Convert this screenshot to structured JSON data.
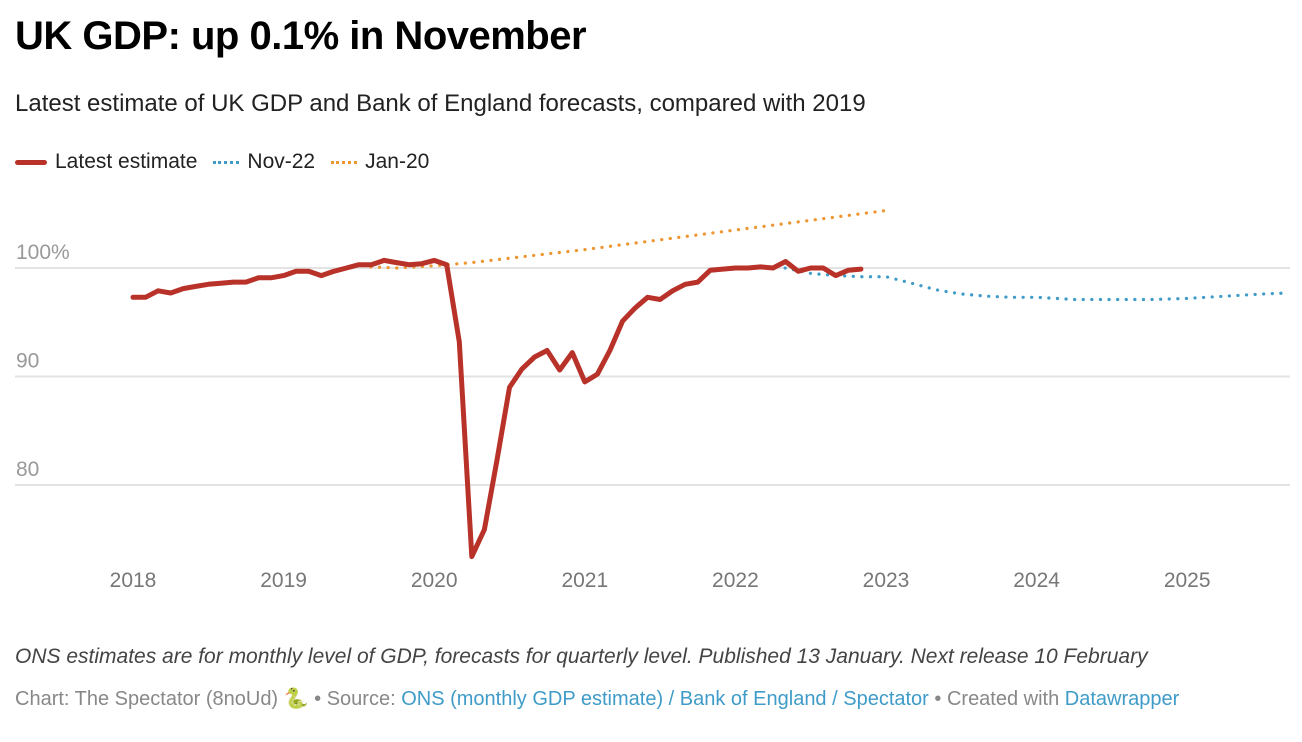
{
  "title": "UK GDP: up 0.1% in November",
  "subtitle": "Latest estimate of UK GDP and Bank of England forecasts, compared with 2019",
  "notes": "ONS estimates are for monthly level of GDP, forecasts for quarterly level. Published 13 January. Next release 10 February",
  "byline": {
    "chart_label": "Chart: The Spectator (8noUd)",
    "emoji": "🐍",
    "sep1": " • Source: ",
    "source_link": "ONS (monthly GDP estimate) / Bank of England / Spectator",
    "sep2": " • Created with ",
    "tool_link": "Datawrapper"
  },
  "colors": {
    "latest": "#b83229",
    "nov22": "#3f9bc8",
    "jan20": "#ee9632",
    "grid": "#e3e3e3",
    "axis_text": "#888888",
    "link": "#3f9bc8"
  },
  "chart_data": {
    "type": "line",
    "title": "UK GDP: up 0.1% in November",
    "xlabel": "",
    "ylabel": "",
    "ylim": [
      72,
      106
    ],
    "xlim": [
      2017.75,
      2025.75
    ],
    "grid": true,
    "legend_position": "top-left",
    "y_ticks": [
      {
        "value": 100,
        "label": "100%"
      },
      {
        "value": 90,
        "label": "90"
      },
      {
        "value": 80,
        "label": "80"
      }
    ],
    "x_ticks": [
      {
        "value": 2018,
        "label": "2018"
      },
      {
        "value": 2019,
        "label": "2019"
      },
      {
        "value": 2020,
        "label": "2020"
      },
      {
        "value": 2021,
        "label": "2021"
      },
      {
        "value": 2022,
        "label": "2022"
      },
      {
        "value": 2023,
        "label": "2023"
      },
      {
        "value": 2024,
        "label": "2024"
      },
      {
        "value": 2025,
        "label": "2025"
      }
    ],
    "series": [
      {
        "name": "Latest estimate",
        "style": "solid",
        "start": "2018-01",
        "frequency": "monthly",
        "values": [
          97.3,
          97.3,
          97.9,
          97.7,
          98.1,
          98.3,
          98.5,
          98.6,
          98.7,
          98.7,
          99.1,
          99.1,
          99.3,
          99.7,
          99.7,
          99.3,
          99.7,
          100.0,
          100.3,
          100.3,
          100.7,
          100.5,
          100.3,
          100.4,
          100.7,
          100.3,
          93.2,
          73.4,
          75.9,
          82.3,
          89.0,
          90.7,
          91.8,
          92.4,
          90.6,
          92.2,
          89.5,
          90.2,
          92.4,
          95.1,
          96.3,
          97.3,
          97.1,
          97.9,
          98.5,
          98.7,
          99.8,
          99.9,
          100.0,
          100.0,
          100.1,
          100.0,
          100.6,
          99.7,
          100.0,
          100.0,
          99.3,
          99.8,
          99.9
        ]
      },
      {
        "name": "Nov-22",
        "style": "dotted",
        "x": [
          2022.33,
          2022.5,
          2022.67,
          2022.83,
          2023.0,
          2023.17,
          2023.33,
          2023.5,
          2023.67,
          2023.83,
          2024.0,
          2024.25,
          2024.5,
          2024.75,
          2025.0,
          2025.25,
          2025.5,
          2025.67
        ],
        "values": [
          100.0,
          99.5,
          99.3,
          99.2,
          99.2,
          98.6,
          98.0,
          97.6,
          97.4,
          97.3,
          97.3,
          97.1,
          97.1,
          97.1,
          97.2,
          97.4,
          97.6,
          97.7
        ]
      },
      {
        "name": "Jan-20",
        "style": "dotted",
        "x": [
          2019.58,
          2019.75,
          2020.0,
          2020.25,
          2020.5,
          2020.75,
          2021.0,
          2021.5,
          2022.0,
          2022.5,
          2023.0
        ],
        "values": [
          100.1,
          100.0,
          100.2,
          100.5,
          100.9,
          101.3,
          101.7,
          102.6,
          103.5,
          104.4,
          105.3
        ]
      }
    ]
  }
}
